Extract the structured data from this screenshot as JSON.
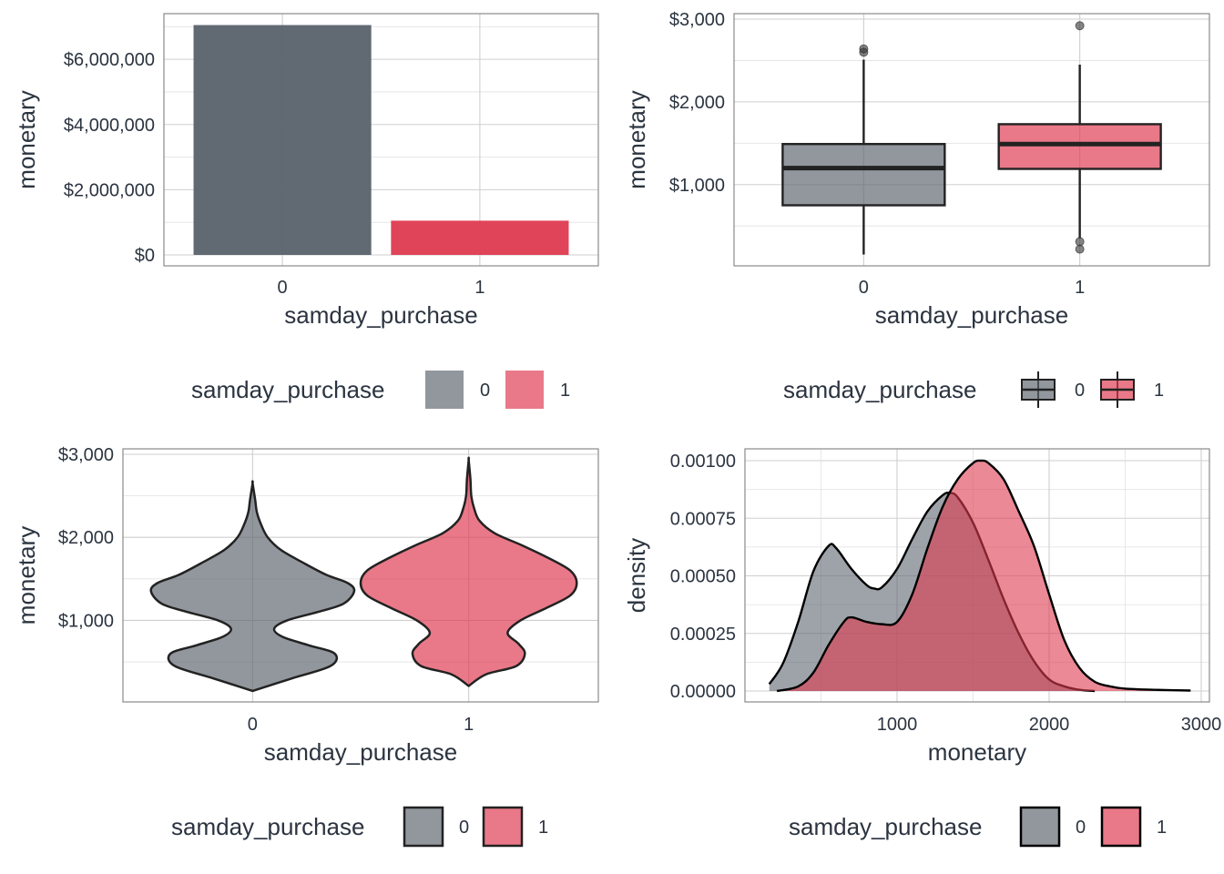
{
  "colors": {
    "group0": "#5e666f",
    "group1": "#de3a50",
    "ink": "#2b3440",
    "outline": "#222222"
  },
  "chart_data": [
    {
      "type": "bar",
      "xlabel": "samday_purchase",
      "ylabel": "monetary",
      "categories": [
        "0",
        "1"
      ],
      "values": [
        7050000,
        1050000
      ],
      "ylim": [
        0,
        7400000
      ],
      "y_ticks": [
        0,
        2000000,
        4000000,
        6000000
      ],
      "y_tick_labels": [
        "$0",
        "$2,000,000",
        "$4,000,000",
        "$6,000,000"
      ],
      "legend": {
        "title": "samday_purchase",
        "labels": [
          "0",
          "1"
        ],
        "position": "bottom"
      },
      "grid": true
    },
    {
      "type": "box",
      "xlabel": "samday_purchase",
      "ylabel": "monetary",
      "categories": [
        "0",
        "1"
      ],
      "boxes": [
        {
          "group": "0",
          "whisker_low": 155,
          "q1": 750,
          "median": 1200,
          "q3": 1490,
          "whisker_high": 2510,
          "outliers": [
            2600,
            2640
          ]
        },
        {
          "group": "1",
          "whisker_low": 350,
          "q1": 1190,
          "median": 1490,
          "q3": 1730,
          "whisker_high": 2450,
          "outliers": [
            310,
            220,
            2920
          ]
        }
      ],
      "ylim": [
        0,
        3000
      ],
      "y_ticks": [
        1000,
        2000,
        3000
      ],
      "y_tick_labels": [
        "$1,000",
        "$2,000",
        "$3,000"
      ],
      "legend": {
        "title": "samday_purchase",
        "labels": [
          "0",
          "1"
        ],
        "position": "bottom"
      },
      "grid": true
    },
    {
      "type": "violin",
      "xlabel": "samday_purchase",
      "ylabel": "monetary",
      "categories": [
        "0",
        "1"
      ],
      "violins": [
        {
          "group": "0",
          "profile": [
            [
              150,
              0.0
            ],
            [
              300,
              0.18
            ],
            [
              450,
              0.36
            ],
            [
              600,
              0.38
            ],
            [
              700,
              0.26
            ],
            [
              800,
              0.14
            ],
            [
              900,
              0.1
            ],
            [
              1000,
              0.16
            ],
            [
              1100,
              0.3
            ],
            [
              1200,
              0.42
            ],
            [
              1350,
              0.47
            ],
            [
              1450,
              0.44
            ],
            [
              1550,
              0.34
            ],
            [
              1700,
              0.23
            ],
            [
              1850,
              0.13
            ],
            [
              2000,
              0.07
            ],
            [
              2150,
              0.04
            ],
            [
              2300,
              0.02
            ],
            [
              2450,
              0.012
            ],
            [
              2650,
              0.0
            ]
          ]
        },
        {
          "group": "1",
          "profile": [
            [
              210,
              0.0
            ],
            [
              350,
              0.08
            ],
            [
              450,
              0.22
            ],
            [
              600,
              0.26
            ],
            [
              720,
              0.23
            ],
            [
              850,
              0.18
            ],
            [
              1000,
              0.24
            ],
            [
              1150,
              0.36
            ],
            [
              1300,
              0.47
            ],
            [
              1450,
              0.5
            ],
            [
              1600,
              0.47
            ],
            [
              1750,
              0.37
            ],
            [
              1900,
              0.25
            ],
            [
              2050,
              0.12
            ],
            [
              2200,
              0.05
            ],
            [
              2350,
              0.025
            ],
            [
              2500,
              0.012
            ],
            [
              2700,
              0.008
            ],
            [
              2930,
              0.0
            ]
          ]
        }
      ],
      "ylim": [
        0,
        3000
      ],
      "y_ticks": [
        1000,
        2000,
        3000
      ],
      "y_tick_labels": [
        "$1,000",
        "$2,000",
        "$3,000"
      ],
      "legend": {
        "title": "samday_purchase",
        "labels": [
          "0",
          "1"
        ],
        "position": "bottom"
      },
      "grid": true
    },
    {
      "type": "area",
      "xlabel": "monetary",
      "ylabel": "density",
      "series": [
        {
          "name": "0",
          "x": [
            160,
            250,
            350,
            450,
            550,
            600,
            700,
            800,
            850,
            900,
            1000,
            1100,
            1200,
            1300,
            1350,
            1400,
            1500,
            1600,
            1700,
            1800,
            1900,
            2000,
            2100,
            2200,
            2300
          ],
          "y": [
            3e-05,
            0.00012,
            0.0003,
            0.00052,
            0.00063,
            0.00062,
            0.00053,
            0.00046,
            0.000445,
            0.00045,
            0.00053,
            0.00066,
            0.00078,
            0.00085,
            0.00086,
            0.00084,
            0.00073,
            0.00057,
            0.0004,
            0.00025,
            0.00013,
            5e-05,
            2e-05,
            5e-06,
            0.0
          ]
        },
        {
          "name": "1",
          "x": [
            210,
            350,
            450,
            550,
            650,
            700,
            800,
            900,
            1000,
            1100,
            1200,
            1300,
            1400,
            1500,
            1550,
            1600,
            1700,
            1800,
            1900,
            2000,
            2100,
            2200,
            2300,
            2400,
            2500,
            2700,
            2930
          ],
          "y": [
            0.0,
            2e-05,
            8e-05,
            0.0002,
            0.0003,
            0.00032,
            0.0003,
            0.00029,
            0.0003,
            0.00042,
            0.00062,
            0.0008,
            0.00092,
            0.00099,
            0.001,
            0.00099,
            0.00092,
            0.00078,
            0.00063,
            0.00042,
            0.00022,
            0.0001,
            4e-05,
            2e-05,
            1e-05,
            5e-06,
            2e-06
          ]
        }
      ],
      "xlim": [
        150,
        2950
      ],
      "ylim": [
        0,
        0.00101
      ],
      "x_ticks": [
        1000,
        2000,
        3000
      ],
      "x_tick_labels": [
        "1000",
        "2000",
        "3000"
      ],
      "y_ticks": [
        0,
        0.00025,
        0.0005,
        0.00075,
        0.001
      ],
      "y_tick_labels": [
        "0.00000",
        "0.00025",
        "0.00050",
        "0.00075",
        "0.00100"
      ],
      "legend": {
        "title": "samday_purchase",
        "labels": [
          "0",
          "1"
        ],
        "position": "bottom"
      },
      "grid": true
    }
  ]
}
